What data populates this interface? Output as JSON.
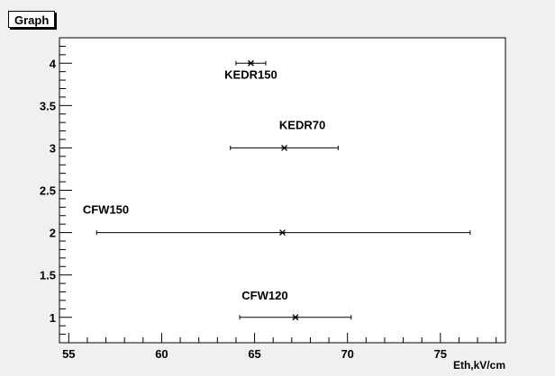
{
  "chart_data": {
    "type": "scatter",
    "title": "Graph",
    "xlabel": "Eth,kV/cm",
    "ylabel": "",
    "xlim": [
      54.5,
      78.5
    ],
    "ylim": [
      0.7,
      4.3
    ],
    "xticks": [
      55,
      60,
      65,
      70,
      75
    ],
    "yticks": [
      1,
      1.5,
      2,
      2.5,
      3,
      3.5,
      4
    ],
    "grid": false,
    "points": [
      {
        "label": "CFW120",
        "x": 67.2,
        "y": 1,
        "xerr_low": 64.2,
        "xerr_high": 70.2
      },
      {
        "label": "CFW150",
        "x": 66.5,
        "y": 2,
        "xerr_low": 56.5,
        "xerr_high": 76.6
      },
      {
        "label": "KEDR70",
        "x": 66.6,
        "y": 3,
        "xerr_low": 63.7,
        "xerr_high": 69.5
      },
      {
        "label": "KEDR150",
        "x": 64.8,
        "y": 4,
        "xerr_low": 64.0,
        "xerr_high": 65.6
      }
    ]
  }
}
